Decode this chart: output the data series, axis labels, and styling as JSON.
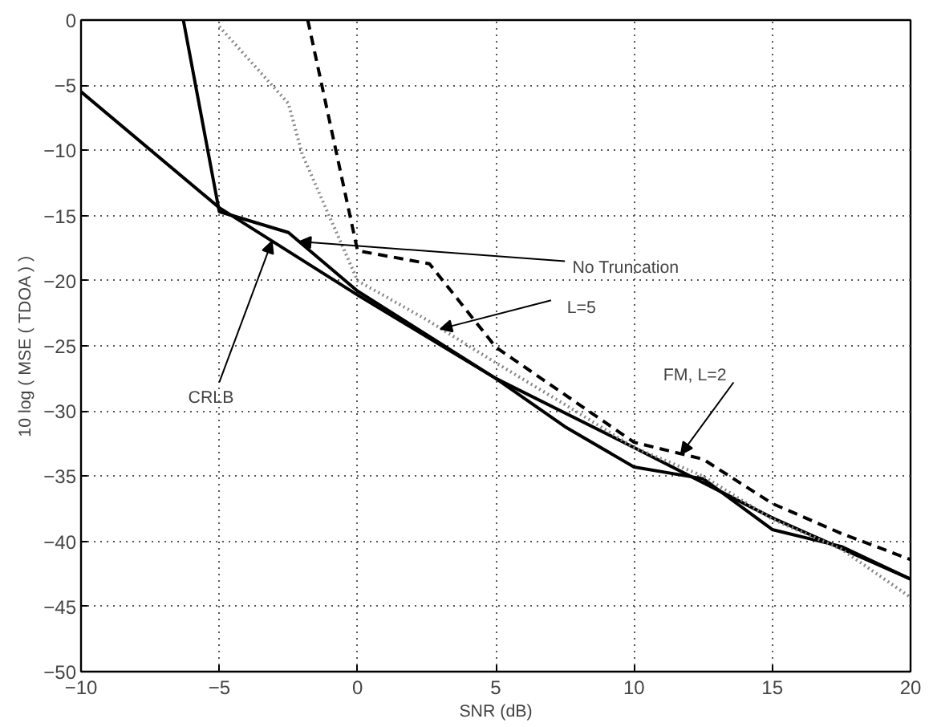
{
  "chart_data": {
    "type": "line",
    "xlabel": "SNR (dB)",
    "ylabel": "10 log ( MSE ( TDOA ) )",
    "xlim": [
      -10,
      20
    ],
    "ylim": [
      -50,
      0
    ],
    "xticks": [
      -10,
      -5,
      0,
      5,
      10,
      15,
      20
    ],
    "yticks": [
      -50,
      -45,
      -40,
      -35,
      -30,
      -25,
      -20,
      -15,
      -10,
      -5,
      0
    ],
    "grid": true,
    "marker": "none",
    "series": [
      {
        "color": "#000000",
        "line_style": "solid",
        "x": [
          -10,
          -5,
          0,
          5,
          10,
          15,
          20
        ],
        "values": [
          -5.5,
          -14.4,
          -21.1,
          -27.5,
          -32.8,
          -38.2,
          -42.9
        ]
      },
      {
        "color": "#000000",
        "line_style": "solid",
        "x": [
          -6.3,
          -5,
          -2.5,
          0,
          5,
          7.5,
          10,
          12.5,
          15,
          17.5,
          20
        ],
        "values": [
          0,
          -14.7,
          -16.3,
          -20.8,
          -27.5,
          -31.2,
          -34.3,
          -35.2,
          -39.1,
          -40.4,
          -42.9
        ]
      },
      {
        "color": "#888888",
        "line_style": "dotted",
        "x": [
          -5,
          -2.5,
          -2,
          0,
          2.5,
          5,
          7.5,
          10,
          12.5,
          15,
          17.5,
          20
        ],
        "values": [
          -0.5,
          -6.4,
          -10.3,
          -20,
          -23,
          -26.3,
          -29.5,
          -32.8,
          -35,
          -38.3,
          -40.6,
          -44.3
        ]
      },
      {
        "color": "#000000",
        "line_style": "dashed",
        "x": [
          -1.8,
          0,
          2.6,
          5,
          10,
          12.5,
          15,
          17.5,
          20
        ],
        "values": [
          0,
          -17.7,
          -18.7,
          -25.1,
          -32.4,
          -33.7,
          -37.1,
          -39.4,
          -41.4
        ]
      }
    ],
    "annotations": [
      {
        "text": "No Truncation",
        "x": -2.1,
        "y": -17.0
      },
      {
        "text": "L=5",
        "x": 3.0,
        "y": -23.7
      },
      {
        "text": "FM, L=2",
        "x": 11.7,
        "y": -33.3
      },
      {
        "text": "CRLB",
        "x": -3.1,
        "y": -17.0
      }
    ]
  }
}
